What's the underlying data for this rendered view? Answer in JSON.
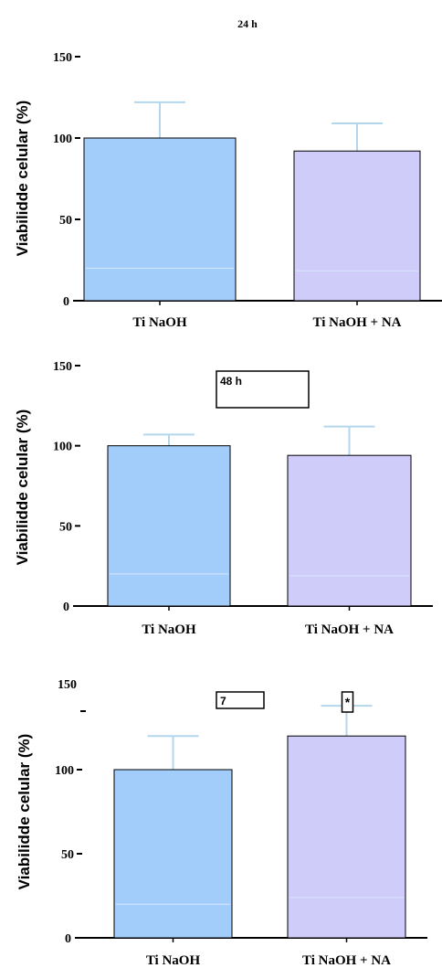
{
  "chart_data": [
    {
      "type": "bar",
      "title": "24 h",
      "title_style": "plain",
      "ylabel": "Viabilidde celular (%)",
      "ylim": [
        0,
        150
      ],
      "yticks": [
        "0",
        "50",
        "100",
        "150"
      ],
      "categories": [
        "Ti NaOH",
        "Ti NaOH + NA"
      ],
      "values": [
        100,
        92
      ],
      "errors": [
        22,
        17
      ],
      "annotations": []
    },
    {
      "type": "bar",
      "title": "48 h",
      "title_style": "boxed",
      "ylabel": "Viabilidde celular (%)",
      "ylim": [
        0,
        150
      ],
      "yticks": [
        "0",
        "50",
        "100",
        "150"
      ],
      "categories": [
        "Ti NaOH",
        "Ti NaOH + NA"
      ],
      "values": [
        100,
        94
      ],
      "errors": [
        7,
        18
      ],
      "annotations": []
    },
    {
      "type": "bar",
      "title": "7",
      "title_style": "boxed",
      "ylabel": "Viabilidde celular (%)",
      "ylim": [
        0,
        150
      ],
      "yticks": [
        "0",
        "50",
        "100",
        "150"
      ],
      "categories": [
        "Ti NaOH",
        "Ti NaOH + NA"
      ],
      "values": [
        100,
        120
      ],
      "errors": [
        20,
        18
      ],
      "annotations": [
        {
          "category": 1,
          "text": "*"
        }
      ]
    }
  ],
  "colors": {
    "bar_fills": [
      "#a2cdfa",
      "#cfccfa"
    ],
    "error_bar": "#b5d7ee",
    "axis": "#000000"
  }
}
